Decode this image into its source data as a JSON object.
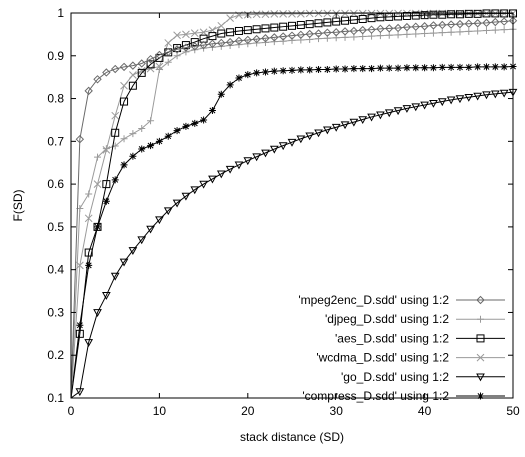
{
  "chart_data": {
    "type": "line",
    "title": "",
    "xlabel": "stack distance (SD)",
    "ylabel": "F(SD)",
    "xlim": [
      0,
      50
    ],
    "ylim": [
      0.1,
      1
    ],
    "xticks": [
      0,
      10,
      20,
      30,
      40,
      50
    ],
    "yticks": [
      0.1,
      0.2,
      0.3,
      0.4,
      0.5,
      0.6,
      0.7,
      0.8,
      0.9,
      1
    ],
    "xtick_labels": [
      "0",
      "10",
      "20",
      "30",
      "40",
      "50"
    ],
    "ytick_labels": [
      "0.1",
      "0.2",
      "0.3",
      "0.4",
      "0.5",
      "0.6",
      "0.7",
      "0.8",
      "0.9",
      "1"
    ],
    "grid": false,
    "legend_position": "bottom-right",
    "series": [
      {
        "name": "'mpeg2enc_D.sdd' using 1:2",
        "marker": "diamond",
        "x": [
          1,
          2,
          3,
          4,
          5,
          6,
          7,
          8,
          9,
          10,
          11,
          12,
          13,
          14,
          15,
          16,
          17,
          18,
          19,
          20,
          21,
          22,
          23,
          24,
          25,
          26,
          27,
          28,
          29,
          30,
          31,
          32,
          33,
          34,
          35,
          36,
          37,
          38,
          39,
          40,
          41,
          42,
          43,
          44,
          45,
          46,
          47,
          48,
          49,
          50
        ],
        "values": [
          0.705,
          0.818,
          0.845,
          0.861,
          0.869,
          0.874,
          0.877,
          0.882,
          0.892,
          0.902,
          0.909,
          0.915,
          0.919,
          0.922,
          0.925,
          0.928,
          0.93,
          0.932,
          0.935,
          0.937,
          0.939,
          0.941,
          0.943,
          0.945,
          0.947,
          0.949,
          0.951,
          0.952,
          0.954,
          0.955,
          0.957,
          0.958,
          0.96,
          0.961,
          0.963,
          0.964,
          0.965,
          0.967,
          0.968,
          0.969,
          0.971,
          0.972,
          0.973,
          0.974,
          0.975,
          0.976,
          0.977,
          0.979,
          0.98,
          0.982
        ]
      },
      {
        "name": "'djpeg_D.sdd' using 1:2",
        "marker": "plus",
        "x": [
          1,
          2,
          3,
          4,
          5,
          6,
          7,
          8,
          9,
          10,
          11,
          12,
          13,
          14,
          15,
          16,
          17,
          18,
          19,
          20,
          21,
          22,
          23,
          24,
          25,
          26,
          27,
          28,
          29,
          30,
          31,
          32,
          33,
          34,
          35,
          36,
          37,
          38,
          39,
          40,
          41,
          42,
          43,
          44,
          45,
          46,
          47,
          48,
          49,
          50
        ],
        "values": [
          0.543,
          0.577,
          0.663,
          0.683,
          0.689,
          0.706,
          0.718,
          0.73,
          0.748,
          0.868,
          0.885,
          0.9,
          0.909,
          0.914,
          0.918,
          0.92,
          0.922,
          0.924,
          0.926,
          0.928,
          0.93,
          0.931,
          0.933,
          0.934,
          0.936,
          0.937,
          0.938,
          0.94,
          0.941,
          0.942,
          0.943,
          0.944,
          0.945,
          0.946,
          0.947,
          0.948,
          0.949,
          0.95,
          0.951,
          0.952,
          0.953,
          0.954,
          0.955,
          0.956,
          0.957,
          0.958,
          0.959,
          0.96,
          0.961,
          0.962
        ]
      },
      {
        "name": "'aes_D.sdd' using 1:2",
        "marker": "square",
        "x": [
          1,
          2,
          3,
          4,
          5,
          6,
          7,
          8,
          9,
          10,
          11,
          12,
          13,
          14,
          15,
          16,
          17,
          18,
          19,
          20,
          21,
          22,
          23,
          24,
          25,
          26,
          27,
          28,
          29,
          30,
          31,
          32,
          33,
          34,
          35,
          36,
          37,
          38,
          39,
          40,
          41,
          42,
          43,
          44,
          45,
          46,
          47,
          48,
          49,
          50
        ],
        "values": [
          0.25,
          0.44,
          0.5,
          0.6,
          0.72,
          0.793,
          0.83,
          0.86,
          0.88,
          0.895,
          0.908,
          0.918,
          0.925,
          0.932,
          0.94,
          0.946,
          0.952,
          0.955,
          0.958,
          0.96,
          0.962,
          0.964,
          0.966,
          0.968,
          0.97,
          0.972,
          0.974,
          0.976,
          0.978,
          0.98,
          0.982,
          0.984,
          0.986,
          0.988,
          0.99,
          0.991,
          0.992,
          0.993,
          0.994,
          0.995,
          0.996,
          0.996,
          0.997,
          0.997,
          0.998,
          0.998,
          0.999,
          0.999,
          0.999,
          0.999
        ]
      },
      {
        "name": "'wcdma_D.sdd' using 1:2",
        "marker": "cross",
        "x": [
          1,
          2,
          3,
          4,
          5,
          6,
          7,
          8,
          9,
          10,
          11,
          12,
          13,
          14,
          15,
          16,
          17,
          18,
          19,
          20,
          21,
          22,
          23,
          24,
          25,
          26,
          27,
          28,
          29,
          30,
          31,
          32,
          33,
          34,
          35,
          36,
          37,
          38,
          39,
          40,
          41,
          42,
          43,
          44,
          45,
          46,
          47,
          48,
          49,
          50
        ],
        "values": [
          0.41,
          0.52,
          0.6,
          0.68,
          0.76,
          0.83,
          0.855,
          0.865,
          0.87,
          0.875,
          0.93,
          0.948,
          0.95,
          0.953,
          0.955,
          0.96,
          0.97,
          0.988,
          0.995,
          0.996,
          0.997,
          0.997,
          0.998,
          0.998,
          0.998,
          0.998,
          0.999,
          0.999,
          0.999,
          0.999,
          0.999,
          0.999,
          0.999,
          0.999,
          0.999,
          0.999,
          0.999,
          0.999,
          0.999,
          0.999,
          0.999,
          0.999,
          0.999,
          0.999,
          0.999,
          0.999,
          0.999,
          0.999,
          0.999,
          0.999
        ]
      },
      {
        "name": "'go_D.sdd' using 1:2",
        "marker": "triangle-down",
        "x": [
          1,
          2,
          3,
          4,
          5,
          6,
          7,
          8,
          9,
          10,
          11,
          12,
          13,
          14,
          15,
          16,
          17,
          18,
          19,
          20,
          21,
          22,
          23,
          24,
          25,
          26,
          27,
          28,
          29,
          30,
          31,
          32,
          33,
          34,
          35,
          36,
          37,
          38,
          39,
          40,
          41,
          42,
          43,
          44,
          45,
          46,
          47,
          48,
          49,
          50
        ],
        "values": [
          0.115,
          0.23,
          0.3,
          0.34,
          0.385,
          0.418,
          0.445,
          0.47,
          0.495,
          0.517,
          0.538,
          0.556,
          0.572,
          0.587,
          0.6,
          0.612,
          0.624,
          0.635,
          0.645,
          0.655,
          0.664,
          0.673,
          0.682,
          0.69,
          0.698,
          0.706,
          0.713,
          0.72,
          0.727,
          0.733,
          0.739,
          0.745,
          0.751,
          0.757,
          0.762,
          0.767,
          0.772,
          0.777,
          0.781,
          0.785,
          0.789,
          0.793,
          0.797,
          0.8,
          0.803,
          0.806,
          0.809,
          0.811,
          0.813,
          0.815
        ]
      },
      {
        "name": "'compress_D.sdd' using 1:2",
        "marker": "star",
        "x": [
          1,
          2,
          3,
          4,
          5,
          6,
          7,
          8,
          9,
          10,
          11,
          12,
          13,
          14,
          15,
          16,
          17,
          18,
          19,
          20,
          21,
          22,
          23,
          24,
          25,
          26,
          27,
          28,
          29,
          30,
          31,
          32,
          33,
          34,
          35,
          36,
          37,
          38,
          39,
          40,
          41,
          42,
          43,
          44,
          45,
          46,
          47,
          48,
          49,
          50
        ],
        "values": [
          0.27,
          0.41,
          0.5,
          0.56,
          0.61,
          0.645,
          0.665,
          0.682,
          0.69,
          0.7,
          0.712,
          0.725,
          0.735,
          0.742,
          0.75,
          0.772,
          0.81,
          0.832,
          0.848,
          0.856,
          0.86,
          0.862,
          0.864,
          0.865,
          0.866,
          0.867,
          0.867,
          0.868,
          0.868,
          0.869,
          0.869,
          0.87,
          0.87,
          0.87,
          0.871,
          0.871,
          0.871,
          0.872,
          0.872,
          0.872,
          0.872,
          0.873,
          0.873,
          0.873,
          0.873,
          0.874,
          0.874,
          0.874,
          0.874,
          0.875
        ]
      }
    ]
  }
}
